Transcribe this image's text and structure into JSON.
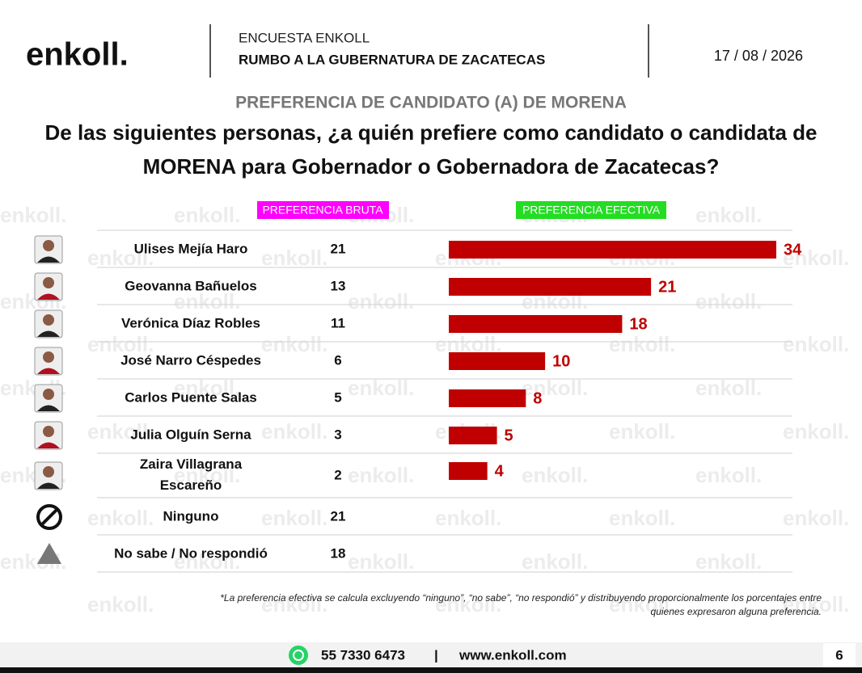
{
  "header": {
    "logo": "enkoll.",
    "survey": "ENCUESTA ENKOLL",
    "subtitle": "RUMBO A LA GUBERNATURA DE ZACATECAS",
    "date": "17 / 08 / 2026"
  },
  "watermark": "enkoll.",
  "chart_data": {
    "type": "bar",
    "title": "PREFERENCIA DE CANDIDATO (A) DE MORENA",
    "subtitle": "De las siguientes personas, ¿a quién prefiere como candidato o candidata de MORENA para Gobernador o Gobernadora de Zacatecas?",
    "categories": [
      "Ulises Mejía Haro",
      "Geovanna Bañuelos",
      "Verónica Díaz Robles",
      "José Narro Céspedes",
      "Carlos Puente Salas",
      "Julia Olguín Serna",
      "Zaira Villagrana Escareño",
      "Ninguno",
      "No sabe / No respondió"
    ],
    "series": [
      {
        "name": "PREFERENCIA BRUTA",
        "values": [
          21,
          13,
          11,
          6,
          5,
          3,
          2,
          21,
          18
        ]
      },
      {
        "name": "PREFERENCIA EFECTIVA",
        "color": "#c00000",
        "values": [
          34,
          21,
          18,
          10,
          8,
          5,
          4,
          null,
          null
        ]
      }
    ],
    "note": "*La preferencia efectiva se calcula excluyendo “ninguno”, “no sabe”, “no respondió” y distribuyendo proporcionalmente los porcentajes entre quienes expresaron alguna preferencia."
  },
  "footer": {
    "phone": "55 7330 6473",
    "separator": "|",
    "website": "www.enkoll.com",
    "page": "6"
  }
}
